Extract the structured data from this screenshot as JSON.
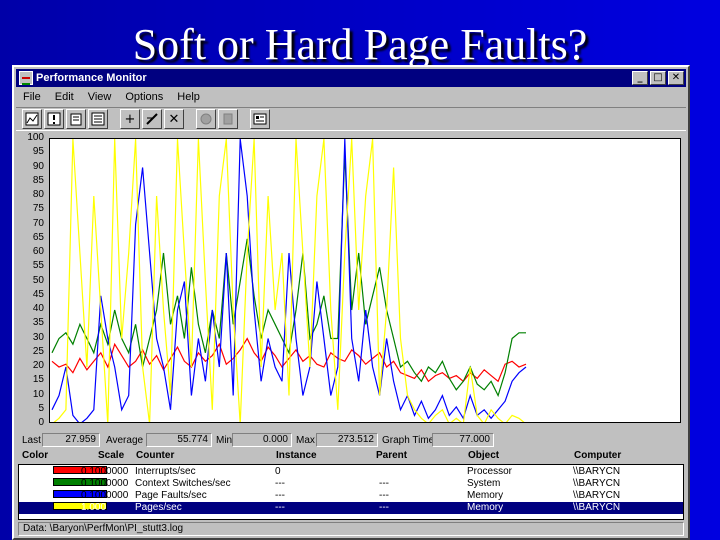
{
  "slide": {
    "title": "Soft or Hard Page Faults?"
  },
  "window": {
    "title": "Performance Monitor",
    "buttons": {
      "minimize": "_",
      "maximize": "□",
      "close": "✕"
    }
  },
  "menu": [
    "File",
    "Edit",
    "View",
    "Options",
    "Help"
  ],
  "toolbar": {
    "icons": [
      "chart-view-icon",
      "alert-view-icon",
      "log-view-icon",
      "report-view-icon",
      "add-counter-icon",
      "edit-counter-icon",
      "delete-counter-icon",
      "update-now-icon",
      "bookmark-icon",
      "options-icon"
    ],
    "add_glyph": "+",
    "delete_glyph": "✕"
  },
  "stats": {
    "last_label": "Last",
    "last_value": "27.959",
    "average_label": "Average",
    "average_value": "55.774",
    "min_label": "Min",
    "min_value": "0.000",
    "max_label": "Max",
    "max_value": "273.512",
    "graph_time_label": "Graph Time",
    "graph_time_value": "77.000"
  },
  "legend": {
    "headers": [
      "Color",
      "Scale",
      "Counter",
      "Instance",
      "Parent",
      "Object",
      "Computer"
    ],
    "rows": [
      {
        "color": "#ff0000",
        "scale": "0.1000000",
        "counter": "Interrupts/sec",
        "instance": "0",
        "parent": "",
        "object": "Processor",
        "computer": "\\\\BARYCN"
      },
      {
        "color": "#008000",
        "scale": "0.1000000",
        "counter": "Context Switches/sec",
        "instance": "---",
        "parent": "---",
        "object": "System",
        "computer": "\\\\BARYCN"
      },
      {
        "color": "#0000ff",
        "scale": "0.1000000",
        "counter": "Page Faults/sec",
        "instance": "---",
        "parent": "---",
        "object": "Memory",
        "computer": "\\\\BARYCN"
      },
      {
        "color": "#ffff00",
        "scale": "1.000",
        "counter": "Pages/sec",
        "instance": "---",
        "parent": "---",
        "object": "Memory",
        "computer": "\\\\BARYCN"
      }
    ]
  },
  "status": {
    "text": "Data: \\Baryon\\PerfMon\\PI_stutt3.log"
  },
  "chart_data": {
    "type": "line",
    "ylim": [
      0,
      100
    ],
    "yticks": [
      100,
      95,
      90,
      85,
      80,
      75,
      70,
      65,
      60,
      55,
      50,
      45,
      40,
      35,
      30,
      25,
      20,
      15,
      10,
      5,
      0
    ],
    "series": [
      {
        "name": "Interrupts/sec",
        "color": "#ff0000",
        "values": [
          22,
          20,
          21,
          18,
          23,
          19,
          22,
          25,
          20,
          28,
          24,
          20,
          22,
          26,
          21,
          24,
          19,
          23,
          27,
          22,
          20,
          25,
          22,
          24,
          28,
          21,
          23,
          26,
          30,
          25,
          22,
          27,
          24,
          20,
          23,
          26,
          22,
          24,
          21,
          20,
          25,
          23,
          22,
          26,
          24,
          21,
          23,
          25,
          20,
          22,
          18,
          17,
          16,
          19,
          15,
          17,
          18,
          16,
          17,
          15,
          18,
          16,
          19,
          17,
          15,
          21,
          22,
          20,
          21
        ]
      },
      {
        "name": "Context Switches/sec",
        "color": "#008000",
        "values": [
          25,
          30,
          32,
          28,
          35,
          30,
          25,
          35,
          28,
          40,
          30,
          25,
          35,
          20,
          30,
          40,
          60,
          35,
          45,
          30,
          55,
          35,
          25,
          40,
          30,
          60,
          35,
          50,
          65,
          45,
          30,
          40,
          35,
          30,
          25,
          40,
          60,
          30,
          35,
          45,
          30,
          30,
          95,
          40,
          60,
          35,
          45,
          55,
          40,
          30,
          20,
          22,
          18,
          15,
          20,
          18,
          22,
          16,
          12,
          15,
          20,
          14,
          12,
          15,
          10,
          18,
          30,
          32,
          32
        ]
      },
      {
        "name": "Page Faults/sec",
        "color": "#0000ff",
        "values": [
          5,
          10,
          20,
          3,
          0,
          2,
          5,
          45,
          30,
          20,
          5,
          10,
          70,
          90,
          60,
          30,
          20,
          5,
          40,
          50,
          10,
          30,
          15,
          40,
          20,
          60,
          10,
          100,
          80,
          40,
          15,
          30,
          20,
          15,
          60,
          30,
          10,
          20,
          50,
          30,
          10,
          20,
          100,
          30,
          15,
          40,
          20,
          10,
          30,
          15,
          5,
          10,
          3,
          8,
          2,
          5,
          10,
          3,
          6,
          2,
          10,
          3,
          5,
          2,
          5,
          8,
          15,
          18,
          20
        ]
      },
      {
        "name": "Pages/sec",
        "color": "#ffff00",
        "values": [
          0,
          2,
          5,
          100,
          60,
          20,
          80,
          40,
          0,
          100,
          30,
          60,
          100,
          20,
          0,
          80,
          40,
          10,
          100,
          60,
          20,
          100,
          50,
          5,
          80,
          100,
          40,
          0,
          60,
          100,
          20,
          80,
          40,
          60,
          10,
          100,
          60,
          20,
          80,
          100,
          40,
          5,
          60,
          100,
          40,
          80,
          100,
          10,
          40,
          90,
          30,
          10,
          5,
          2,
          0,
          3,
          5,
          0,
          2,
          0,
          20,
          3,
          0,
          5,
          2,
          0,
          3,
          2,
          0
        ]
      }
    ]
  }
}
